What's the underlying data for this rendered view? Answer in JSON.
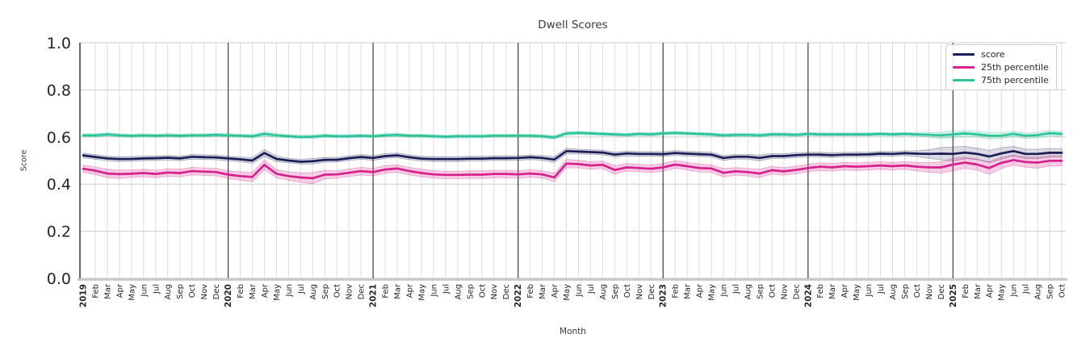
{
  "chart_data": {
    "type": "line",
    "title": "Dwell Scores",
    "xlabel": "Month",
    "ylabel": "Score",
    "ylim": [
      0.0,
      1.0
    ],
    "yticks": {
      "values": [
        0.0,
        0.2,
        0.4,
        0.6,
        0.8,
        1.0
      ],
      "labels": [
        "0.0",
        "0.2",
        "0.4",
        "0.6",
        "0.8",
        "1.0"
      ]
    },
    "x": [
      "2019",
      "Feb",
      "Mar",
      "Apr",
      "May",
      "Jun",
      "Jul",
      "Aug",
      "Sep",
      "Oct",
      "Nov",
      "Dec",
      "2020",
      "Feb",
      "Mar",
      "Apr",
      "May",
      "Jun",
      "Jul",
      "Aug",
      "Sep",
      "Oct",
      "Nov",
      "Dec",
      "2021",
      "Feb",
      "Mar",
      "Apr",
      "May",
      "Jun",
      "Jul",
      "Aug",
      "Sep",
      "Oct",
      "Nov",
      "Dec",
      "2022",
      "Feb",
      "Mar",
      "Apr",
      "May",
      "Jun",
      "Jul",
      "Aug",
      "Sep",
      "Oct",
      "Nov",
      "Dec",
      "2023",
      "Feb",
      "Mar",
      "Apr",
      "May",
      "Jun",
      "Jul",
      "Aug",
      "Sep",
      "Oct",
      "Nov",
      "Dec",
      "2024",
      "Feb",
      "Mar",
      "Apr",
      "May",
      "Jun",
      "Jul",
      "Aug",
      "Sep",
      "Oct",
      "Nov",
      "Dec",
      "2025",
      "Feb",
      "Mar",
      "Apr",
      "May",
      "Jun",
      "Jul",
      "Aug",
      "Sep",
      "Oct"
    ],
    "year_start_indices": [
      0,
      12,
      24,
      36,
      48,
      60,
      72
    ],
    "legend": {
      "position": "upper right"
    },
    "grid": {
      "horizontal": "#cccccc",
      "vertical": "#dcdcdc",
      "year_line": "#3c3c3c",
      "baseline": "#c9c9c9",
      "spine": "#262626",
      "tick_text": "#262626"
    },
    "series": [
      {
        "name": "score",
        "color": "#1c1d56",
        "band_opacity": 0.16,
        "values": [
          0.522,
          0.515,
          0.509,
          0.506,
          0.507,
          0.509,
          0.51,
          0.512,
          0.509,
          0.516,
          0.514,
          0.513,
          0.509,
          0.505,
          0.5,
          0.532,
          0.507,
          0.5,
          0.495,
          0.497,
          0.503,
          0.503,
          0.51,
          0.515,
          0.511,
          0.519,
          0.522,
          0.514,
          0.508,
          0.506,
          0.506,
          0.506,
          0.508,
          0.508,
          0.51,
          0.51,
          0.511,
          0.514,
          0.511,
          0.504,
          0.54,
          0.538,
          0.536,
          0.534,
          0.525,
          0.53,
          0.528,
          0.528,
          0.527,
          0.532,
          0.529,
          0.527,
          0.525,
          0.511,
          0.516,
          0.516,
          0.511,
          0.519,
          0.519,
          0.523,
          0.525,
          0.525,
          0.523,
          0.525,
          0.525,
          0.526,
          0.529,
          0.528,
          0.531,
          0.529,
          0.528,
          0.529,
          0.528,
          0.534,
          0.528,
          0.517,
          0.53,
          0.54,
          0.528,
          0.528,
          0.533,
          0.533
        ],
        "ci": [
          0.01,
          0.01,
          0.01,
          0.01,
          0.01,
          0.01,
          0.01,
          0.01,
          0.01,
          0.01,
          0.01,
          0.01,
          0.01,
          0.01,
          0.012,
          0.015,
          0.012,
          0.01,
          0.01,
          0.012,
          0.01,
          0.01,
          0.01,
          0.01,
          0.01,
          0.01,
          0.01,
          0.01,
          0.01,
          0.01,
          0.01,
          0.01,
          0.01,
          0.01,
          0.01,
          0.01,
          0.01,
          0.01,
          0.01,
          0.012,
          0.012,
          0.01,
          0.01,
          0.01,
          0.01,
          0.01,
          0.01,
          0.01,
          0.01,
          0.01,
          0.01,
          0.01,
          0.01,
          0.01,
          0.01,
          0.01,
          0.012,
          0.01,
          0.01,
          0.01,
          0.01,
          0.01,
          0.01,
          0.01,
          0.01,
          0.01,
          0.01,
          0.01,
          0.01,
          0.012,
          0.018,
          0.026,
          0.03,
          0.026,
          0.024,
          0.026,
          0.024,
          0.02,
          0.02,
          0.02,
          0.018,
          0.018
        ]
      },
      {
        "name": "25th percentile",
        "color": "#d7218d",
        "band_opacity": 0.22,
        "values": [
          0.465,
          0.457,
          0.445,
          0.442,
          0.444,
          0.447,
          0.443,
          0.449,
          0.447,
          0.455,
          0.453,
          0.451,
          0.44,
          0.434,
          0.43,
          0.482,
          0.444,
          0.434,
          0.428,
          0.425,
          0.44,
          0.441,
          0.448,
          0.455,
          0.451,
          0.462,
          0.466,
          0.455,
          0.447,
          0.441,
          0.439,
          0.439,
          0.44,
          0.44,
          0.443,
          0.443,
          0.441,
          0.445,
          0.441,
          0.428,
          0.487,
          0.485,
          0.479,
          0.482,
          0.46,
          0.471,
          0.468,
          0.465,
          0.471,
          0.483,
          0.476,
          0.468,
          0.466,
          0.448,
          0.454,
          0.451,
          0.445,
          0.459,
          0.454,
          0.46,
          0.468,
          0.474,
          0.471,
          0.476,
          0.474,
          0.476,
          0.479,
          0.476,
          0.479,
          0.474,
          0.471,
          0.471,
          0.483,
          0.491,
          0.483,
          0.468,
          0.49,
          0.502,
          0.494,
          0.491,
          0.499,
          0.499
        ],
        "ci": [
          0.016,
          0.016,
          0.018,
          0.018,
          0.016,
          0.016,
          0.016,
          0.016,
          0.016,
          0.016,
          0.016,
          0.016,
          0.016,
          0.018,
          0.02,
          0.02,
          0.018,
          0.018,
          0.02,
          0.024,
          0.018,
          0.016,
          0.016,
          0.016,
          0.016,
          0.016,
          0.016,
          0.016,
          0.016,
          0.016,
          0.016,
          0.016,
          0.016,
          0.016,
          0.016,
          0.016,
          0.016,
          0.016,
          0.016,
          0.018,
          0.018,
          0.016,
          0.016,
          0.016,
          0.018,
          0.016,
          0.016,
          0.016,
          0.016,
          0.016,
          0.016,
          0.016,
          0.016,
          0.018,
          0.016,
          0.016,
          0.018,
          0.016,
          0.016,
          0.016,
          0.016,
          0.016,
          0.016,
          0.016,
          0.016,
          0.016,
          0.016,
          0.016,
          0.016,
          0.018,
          0.02,
          0.024,
          0.027,
          0.024,
          0.024,
          0.027,
          0.024,
          0.022,
          0.022,
          0.024,
          0.022,
          0.022
        ]
      },
      {
        "name": "75th percentile",
        "color": "#2cc39b",
        "band_opacity": 0.2,
        "values": [
          0.607,
          0.607,
          0.611,
          0.607,
          0.605,
          0.607,
          0.605,
          0.607,
          0.605,
          0.607,
          0.607,
          0.609,
          0.607,
          0.605,
          0.603,
          0.613,
          0.607,
          0.603,
          0.6,
          0.601,
          0.605,
          0.603,
          0.603,
          0.605,
          0.603,
          0.607,
          0.609,
          0.605,
          0.605,
          0.603,
          0.601,
          0.603,
          0.603,
          0.603,
          0.605,
          0.605,
          0.605,
          0.605,
          0.603,
          0.598,
          0.615,
          0.617,
          0.615,
          0.613,
          0.611,
          0.609,
          0.613,
          0.611,
          0.615,
          0.617,
          0.615,
          0.613,
          0.611,
          0.607,
          0.609,
          0.609,
          0.607,
          0.611,
          0.611,
          0.609,
          0.613,
          0.611,
          0.611,
          0.611,
          0.611,
          0.611,
          0.613,
          0.611,
          0.613,
          0.611,
          0.609,
          0.607,
          0.611,
          0.615,
          0.611,
          0.605,
          0.605,
          0.613,
          0.605,
          0.608,
          0.616,
          0.613
        ],
        "ci": [
          0.007,
          0.007,
          0.007,
          0.007,
          0.007,
          0.007,
          0.007,
          0.007,
          0.007,
          0.007,
          0.007,
          0.007,
          0.007,
          0.007,
          0.008,
          0.01,
          0.008,
          0.007,
          0.007,
          0.008,
          0.007,
          0.007,
          0.007,
          0.007,
          0.007,
          0.007,
          0.007,
          0.007,
          0.007,
          0.007,
          0.007,
          0.007,
          0.007,
          0.007,
          0.007,
          0.007,
          0.007,
          0.007,
          0.007,
          0.008,
          0.008,
          0.007,
          0.007,
          0.007,
          0.007,
          0.007,
          0.007,
          0.007,
          0.007,
          0.007,
          0.007,
          0.007,
          0.007,
          0.007,
          0.007,
          0.007,
          0.007,
          0.007,
          0.007,
          0.007,
          0.007,
          0.007,
          0.007,
          0.007,
          0.007,
          0.007,
          0.007,
          0.007,
          0.007,
          0.008,
          0.01,
          0.013,
          0.014,
          0.012,
          0.012,
          0.013,
          0.012,
          0.011,
          0.011,
          0.012,
          0.011,
          0.011
        ]
      }
    ]
  }
}
